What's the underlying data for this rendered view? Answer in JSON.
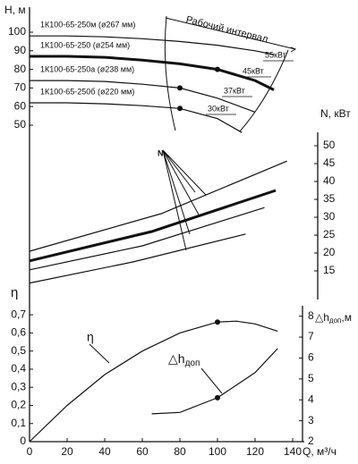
{
  "chart_data": [
    {
      "type": "line",
      "y_label": "H, м",
      "ylim": [
        45,
        112.5
      ],
      "yticks": [
        50,
        60,
        70,
        80,
        90,
        100
      ],
      "series": [
        {
          "name": "1К100-65-250м (ø267 мм)",
          "color": "#111",
          "bold": false,
          "x": [
            0,
            20,
            40,
            60,
            80,
            100,
            120,
            130
          ],
          "values": [
            98,
            98,
            97.5,
            96.5,
            95,
            93,
            90,
            88
          ]
        },
        {
          "name": "1К100-65-250 (ø254 мм)",
          "color": "#111",
          "bold": true,
          "x": [
            0,
            20,
            40,
            60,
            80,
            100,
            120,
            130
          ],
          "values": [
            87,
            87,
            86.5,
            85,
            83,
            80,
            74,
            69
          ],
          "markers": [
            {
              "x": 100,
              "value": 80
            }
          ]
        },
        {
          "name": "1К100-65-250а (ø238 мм)",
          "color": "#111",
          "bold": false,
          "x": [
            0,
            20,
            40,
            60,
            80,
            100,
            120
          ],
          "values": [
            74,
            74,
            73.5,
            72,
            70,
            64.5,
            57
          ],
          "markers": [
            {
              "x": 80,
              "value": 70
            }
          ]
        },
        {
          "name": "1К100-65-250б (ø220 мм)",
          "color": "#111",
          "bold": false,
          "x": [
            0,
            20,
            40,
            60,
            80,
            100,
            113
          ],
          "values": [
            62,
            62,
            61.5,
            60.5,
            59,
            53.5,
            46
          ],
          "markers": [
            {
              "x": 80,
              "value": 59
            }
          ]
        }
      ],
      "annotations": [
        "Рабочий интервал",
        "55кВт",
        "45кВт",
        "37кВт",
        "30кВт"
      ]
    },
    {
      "type": "line",
      "y_label": "N, кВт",
      "ylim": [
        10,
        52
      ],
      "yticks": [
        15,
        20,
        25,
        30,
        35,
        40,
        45,
        50
      ],
      "annotation": "N",
      "series": [
        {
          "color": "#111",
          "bold": false,
          "x": [
            0,
            70,
            137
          ],
          "values": [
            20.5,
            31,
            45.7
          ]
        },
        {
          "color": "#111",
          "bold": true,
          "x": [
            0,
            65,
            131
          ],
          "values": [
            17.8,
            26,
            37.5
          ]
        },
        {
          "color": "#111",
          "bold": false,
          "x": [
            0,
            60,
            125
          ],
          "values": [
            15.3,
            22,
            32.7
          ]
        },
        {
          "color": "#111",
          "bold": false,
          "x": [
            0,
            55,
            115
          ],
          "values": [
            11.6,
            17.5,
            25.3
          ]
        }
      ]
    },
    {
      "type": "line",
      "y_label": "η",
      "y2_label": {
        "main": "△h",
        "sub": "доп",
        "unit": ",м"
      },
      "xlabel": "Q, м³/ч",
      "xlim": [
        0,
        140
      ],
      "xticks": [
        0,
        20,
        40,
        60,
        80,
        100,
        120,
        140
      ],
      "ylim": [
        0,
        0.75
      ],
      "yticks": [
        0,
        {
          "value": 0.1,
          "label": "0,1"
        },
        {
          "value": 0.2,
          "label": "0,2"
        },
        {
          "value": 0.3,
          "label": "0,3"
        },
        {
          "value": 0.4,
          "label": "0,4"
        },
        {
          "value": 0.5,
          "label": "0,5"
        },
        {
          "value": 0.6,
          "label": "0,6"
        },
        {
          "value": 0.7,
          "label": "0,7"
        }
      ],
      "y2lim": [
        2,
        8.5
      ],
      "y2ticks": [
        2,
        3,
        4,
        5,
        6,
        7,
        8
      ],
      "series": [
        {
          "name": "η",
          "color": "#111",
          "x": [
            0,
            20,
            40,
            60,
            80,
            100,
            110,
            120,
            132
          ],
          "values": [
            0,
            0.2,
            0.37,
            0.5,
            0.6,
            0.66,
            0.665,
            0.65,
            0.61
          ],
          "markers": [
            {
              "x": 100,
              "value": 0.66
            }
          ]
        },
        {
          "name": {
            "main": "△h",
            "sub": "доп"
          },
          "axis": "y2",
          "color": "#111",
          "x": [
            65,
            80,
            100,
            120,
            132
          ],
          "values": [
            3.33,
            3.4,
            4.1,
            5.3,
            6.45
          ],
          "markers": [
            {
              "x": 100,
              "value": 4.1
            }
          ]
        }
      ]
    }
  ]
}
